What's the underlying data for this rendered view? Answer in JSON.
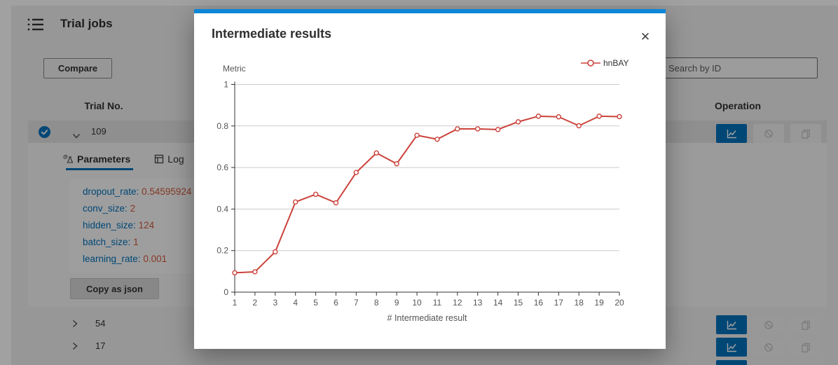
{
  "page": {
    "title": "Trial jobs",
    "compare_button": "Compare",
    "search": {
      "placeholder": "Search by ID"
    },
    "columns": {
      "trial_no": "Trial No.",
      "operation": "Operation"
    },
    "selected_trial": {
      "id": "109",
      "tabs": [
        {
          "label": "Parameters"
        },
        {
          "label": "Log"
        }
      ],
      "parameters": [
        {
          "key": "dropout_rate:",
          "value": "0.54595924"
        },
        {
          "key": "conv_size:",
          "value": "2"
        },
        {
          "key": "hidden_size:",
          "value": "124"
        },
        {
          "key": "batch_size:",
          "value": "1"
        },
        {
          "key": "learning_rate:",
          "value": "0.001"
        }
      ],
      "copy_button": "Copy as json"
    },
    "other_trials": [
      {
        "id": "54"
      },
      {
        "id": "17"
      },
      {
        "id": ""
      }
    ]
  },
  "modal": {
    "title": "Intermediate results",
    "close_icon": "✕"
  },
  "chart_data": {
    "type": "line",
    "title": "Intermediate results",
    "x": [
      1,
      2,
      3,
      4,
      5,
      6,
      7,
      8,
      9,
      10,
      11,
      12,
      13,
      14,
      15,
      16,
      17,
      18,
      19,
      20
    ],
    "series": [
      {
        "name": "hnBAY",
        "color": "#cb423b",
        "values": [
          0.093,
          0.098,
          0.194,
          0.434,
          0.471,
          0.43,
          0.576,
          0.67,
          0.618,
          0.755,
          0.736,
          0.786,
          0.786,
          0.783,
          0.82,
          0.847,
          0.844,
          0.801,
          0.847,
          0.845
        ]
      }
    ],
    "xlabel": "# Intermediate result",
    "ylabel": "Metric",
    "xlim": [
      1,
      20
    ],
    "ylim": [
      0,
      1
    ],
    "yticks": [
      0,
      0.2,
      0.4,
      0.6,
      0.8,
      1
    ],
    "grid": true,
    "legend_position": "top-right"
  },
  "colors": {
    "accent_blue": "#0071bc",
    "modal_top_bar": "#0d86d8",
    "series_red": "#cb423b",
    "param_key": "#0071bc",
    "param_value": "#d35a3b",
    "selected_row_bg": "#e2e2e2",
    "page_bg": "#f0f0f0"
  }
}
